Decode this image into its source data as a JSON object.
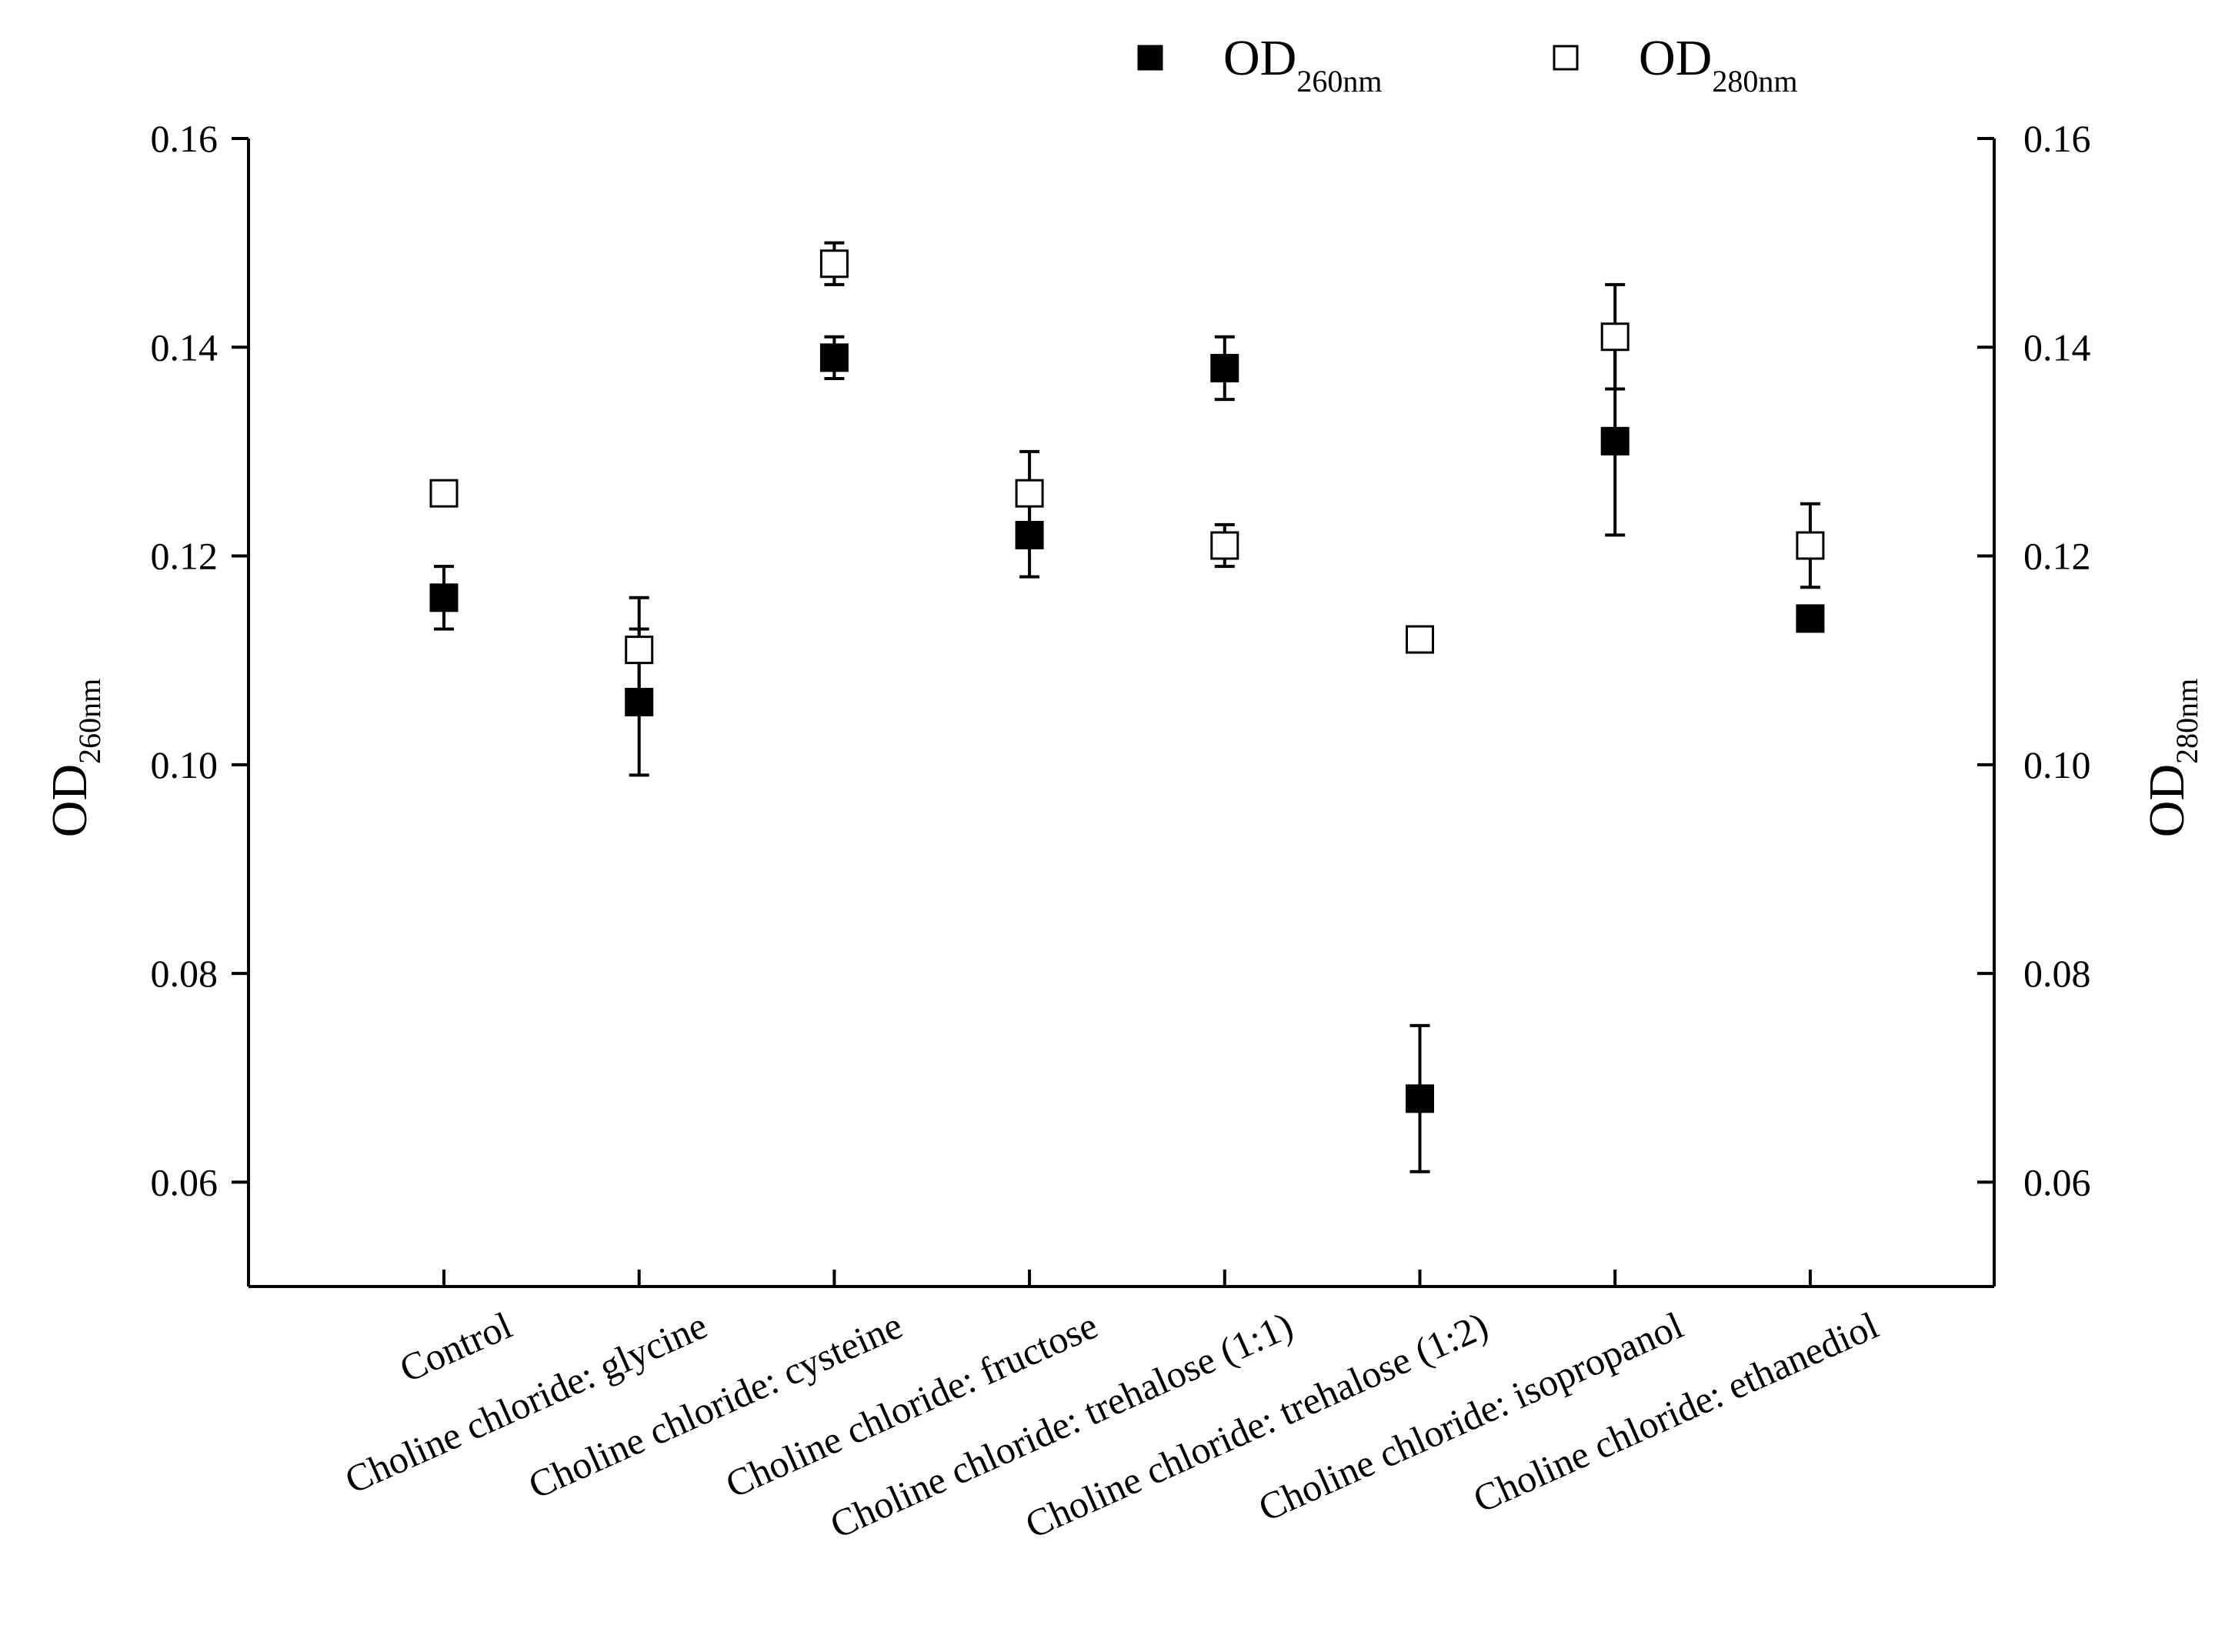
{
  "chart_data": {
    "type": "scatter",
    "title": "",
    "categories": [
      "Control",
      "Choline chloride: glycine",
      "Choline chloride: cysteine",
      "Choline chloride: fructose",
      "Choline chloride: trehalose (1:1)",
      "Choline chloride: trehalose (1:2)",
      "Choline chloride: isopropanol",
      "Choline chloride: ethanediol"
    ],
    "series": [
      {
        "name": "OD",
        "name_sub": "260nm",
        "marker": "filled-square",
        "axis": "left",
        "values": [
          0.116,
          0.106,
          0.139,
          0.122,
          0.138,
          0.068,
          0.131,
          0.114
        ],
        "errors": [
          0.003,
          0.007,
          0.002,
          0.004,
          0.003,
          0.007,
          0.009,
          0.0005
        ]
      },
      {
        "name": "OD",
        "name_sub": "280nm",
        "marker": "open-square",
        "axis": "right",
        "values": [
          0.126,
          0.111,
          0.148,
          0.126,
          0.121,
          0.112,
          0.141,
          0.121
        ],
        "errors": [
          0.001,
          0.005,
          0.002,
          0.004,
          0.002,
          0.001,
          0.005,
          0.004
        ]
      }
    ],
    "y_left": {
      "label": "OD",
      "label_sub": "260nm",
      "ylim": [
        0.05,
        0.16
      ],
      "ticks": [
        "0.06",
        "0.08",
        "0.10",
        "0.12",
        "0.14",
        "0.16"
      ]
    },
    "y_right": {
      "label": "OD",
      "label_sub": "280nm",
      "ylim": [
        0.05,
        0.16
      ],
      "ticks": [
        "0.06",
        "0.08",
        "0.10",
        "0.12",
        "0.14",
        "0.16"
      ]
    },
    "xlabel": "",
    "grid": false,
    "legend_position": "top-right"
  }
}
